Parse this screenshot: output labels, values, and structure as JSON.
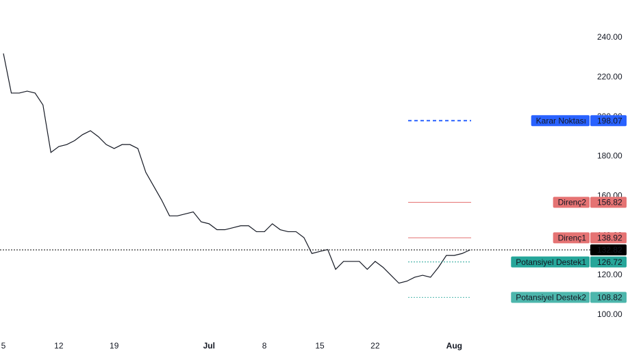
{
  "chart_data": {
    "type": "line",
    "categories": [
      "5",
      null,
      null,
      null,
      null,
      null,
      null,
      "12",
      null,
      null,
      null,
      null,
      null,
      null,
      "19",
      null,
      null,
      null,
      null,
      null,
      null,
      null,
      null,
      null,
      null,
      null,
      "Jul",
      null,
      null,
      null,
      null,
      null,
      null,
      "8",
      null,
      null,
      null,
      null,
      null,
      null,
      "15",
      null,
      null,
      null,
      null,
      null,
      null,
      "22",
      null,
      null,
      null,
      null,
      null,
      null,
      null,
      null,
      null,
      "Aug",
      null,
      null
    ],
    "series": [
      {
        "color": "#131722",
        "values": [
          232,
          212,
          212,
          213,
          212,
          206,
          182,
          185,
          186,
          188,
          191,
          193,
          190,
          186,
          184,
          186,
          186,
          184,
          172,
          165,
          158,
          150,
          150,
          151,
          152,
          147,
          146,
          143,
          143,
          144,
          145,
          145,
          142,
          142,
          146,
          143,
          142,
          142,
          139,
          131,
          132,
          133,
          123,
          127,
          127,
          127,
          123,
          127,
          124,
          120,
          116,
          117,
          119,
          120,
          119,
          124,
          130,
          130,
          131,
          132.82
        ]
      }
    ],
    "ylim": [
      89.6,
      259
    ],
    "yticks": [
      {
        "value": 100,
        "label": "100.00"
      },
      {
        "value": 120,
        "label": "120.00"
      },
      {
        "value": 140,
        "label": "140.00"
      },
      {
        "value": 160,
        "label": "160.00"
      },
      {
        "value": 180,
        "label": "180.00"
      },
      {
        "value": 200,
        "label": "200.00"
      },
      {
        "value": 220,
        "label": "220.00"
      },
      {
        "value": 240,
        "label": "240.00"
      }
    ],
    "last_price": 132.82,
    "last_price_color": "#000000",
    "levels": [
      {
        "name": "Karar Noktası",
        "value": 198.07,
        "color": "#2962ff",
        "style": "dashed"
      },
      {
        "name": "Direnç2",
        "value": 156.82,
        "color": "#e57373",
        "style": "solid"
      },
      {
        "name": "Direnç1",
        "value": 138.92,
        "color": "#e57373",
        "style": "solid"
      },
      {
        "name": "Potansiyel Destek1",
        "value": 126.72,
        "color": "#26a69a",
        "style": "dotted"
      },
      {
        "name": "Potansiyel Destek2",
        "value": 108.82,
        "color": "#4db6ac",
        "style": "dotted"
      }
    ]
  }
}
